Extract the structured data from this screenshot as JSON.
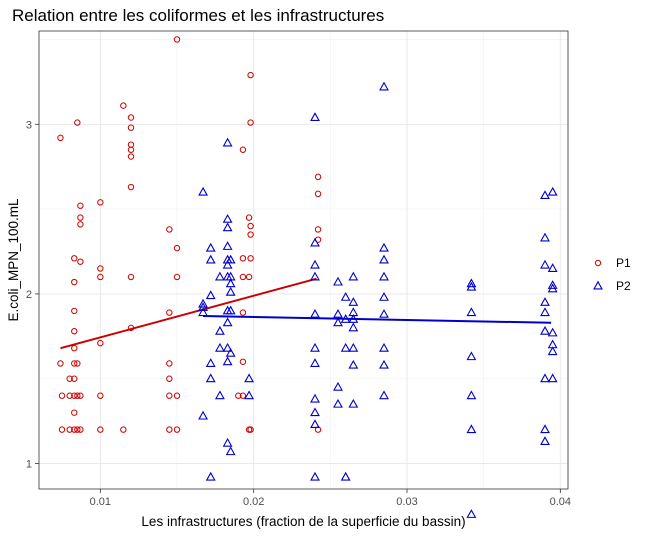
{
  "chart_data": {
    "type": "scatter",
    "title": "Relation entre les coliformes et les infrastructures",
    "xlabel": "Les infrastructures (fraction de la superficie du bassin)",
    "ylabel": "E.coli_MPN_100.mL",
    "xlim": [
      0.006,
      0.0405
    ],
    "ylim": [
      0.85,
      3.55
    ],
    "x_ticks": [
      0.01,
      0.02,
      0.03,
      0.04
    ],
    "x_tick_labels": [
      "0.01",
      "0.02",
      "0.03",
      "0.04"
    ],
    "y_ticks": [
      1.0,
      2.0,
      3.0
    ],
    "y_tick_labels": [
      "1",
      "2",
      "3"
    ],
    "grid": true,
    "legend_position": "right",
    "colors": {
      "P1": "#cc0000",
      "P2": "#0000cc"
    },
    "series": [
      {
        "name": "P1",
        "marker": "circle",
        "color": "#cc0000",
        "points": [
          [
            0.0074,
            2.92
          ],
          [
            0.0074,
            1.59
          ],
          [
            0.0075,
            1.4
          ],
          [
            0.0075,
            1.2
          ],
          [
            0.008,
            1.5
          ],
          [
            0.008,
            1.4
          ],
          [
            0.008,
            1.2
          ],
          [
            0.0083,
            2.21
          ],
          [
            0.0083,
            2.07
          ],
          [
            0.0083,
            1.9
          ],
          [
            0.0083,
            1.78
          ],
          [
            0.0083,
            1.68
          ],
          [
            0.0083,
            1.59
          ],
          [
            0.0083,
            1.5
          ],
          [
            0.0083,
            1.4
          ],
          [
            0.0083,
            1.3
          ],
          [
            0.0083,
            1.2
          ],
          [
            0.0085,
            3.01
          ],
          [
            0.0085,
            1.59
          ],
          [
            0.0085,
            1.4
          ],
          [
            0.0085,
            1.2
          ],
          [
            0.0087,
            2.52
          ],
          [
            0.0087,
            2.45
          ],
          [
            0.0087,
            2.41
          ],
          [
            0.0087,
            2.19
          ],
          [
            0.0087,
            1.4
          ],
          [
            0.0087,
            1.2
          ],
          [
            0.01,
            2.54
          ],
          [
            0.01,
            2.15
          ],
          [
            0.01,
            2.1
          ],
          [
            0.01,
            1.71
          ],
          [
            0.01,
            1.4
          ],
          [
            0.01,
            1.2
          ],
          [
            0.0115,
            3.11
          ],
          [
            0.0115,
            1.2
          ],
          [
            0.012,
            3.04
          ],
          [
            0.012,
            2.98
          ],
          [
            0.012,
            2.88
          ],
          [
            0.012,
            2.85
          ],
          [
            0.012,
            2.81
          ],
          [
            0.012,
            2.63
          ],
          [
            0.012,
            2.1
          ],
          [
            0.012,
            1.8
          ],
          [
            0.0145,
            2.38
          ],
          [
            0.0145,
            1.89
          ],
          [
            0.0145,
            1.59
          ],
          [
            0.0145,
            1.5
          ],
          [
            0.0145,
            1.4
          ],
          [
            0.0145,
            1.2
          ],
          [
            0.015,
            3.5
          ],
          [
            0.015,
            2.27
          ],
          [
            0.015,
            2.1
          ],
          [
            0.015,
            1.4
          ],
          [
            0.015,
            1.2
          ],
          [
            0.019,
            1.4
          ],
          [
            0.0193,
            2.85
          ],
          [
            0.0193,
            2.21
          ],
          [
            0.0193,
            2.1
          ],
          [
            0.0193,
            1.89
          ],
          [
            0.0193,
            1.6
          ],
          [
            0.0193,
            1.4
          ],
          [
            0.0197,
            2.45
          ],
          [
            0.0197,
            2.1
          ],
          [
            0.0197,
            1.2
          ],
          [
            0.0198,
            3.29
          ],
          [
            0.0198,
            3.01
          ],
          [
            0.0198,
            2.4
          ],
          [
            0.0198,
            2.35
          ],
          [
            0.0198,
            2.21
          ],
          [
            0.0198,
            1.2
          ],
          [
            0.0242,
            2.69
          ],
          [
            0.0242,
            2.59
          ],
          [
            0.0242,
            2.38
          ],
          [
            0.0242,
            2.32
          ],
          [
            0.0242,
            1.2
          ]
        ],
        "trend": {
          "x": [
            0.0074,
            0.0241
          ],
          "y": [
            1.68,
            2.09
          ]
        }
      },
      {
        "name": "P2",
        "marker": "triangle",
        "color": "#0000cc",
        "points": [
          [
            0.0167,
            2.6
          ],
          [
            0.0167,
            1.94
          ],
          [
            0.0167,
            1.92
          ],
          [
            0.0167,
            1.89
          ],
          [
            0.0167,
            1.28
          ],
          [
            0.0172,
            2.27
          ],
          [
            0.0172,
            2.2
          ],
          [
            0.0172,
            1.99
          ],
          [
            0.0172,
            1.59
          ],
          [
            0.0172,
            1.5
          ],
          [
            0.0172,
            0.92
          ],
          [
            0.0178,
            2.1
          ],
          [
            0.0178,
            1.78
          ],
          [
            0.0178,
            1.68
          ],
          [
            0.0178,
            1.4
          ],
          [
            0.0183,
            2.89
          ],
          [
            0.0183,
            2.44
          ],
          [
            0.0183,
            2.39
          ],
          [
            0.0183,
            2.28
          ],
          [
            0.0183,
            2.2
          ],
          [
            0.0183,
            2.17
          ],
          [
            0.0183,
            2.1
          ],
          [
            0.0183,
            1.9
          ],
          [
            0.0183,
            1.83
          ],
          [
            0.0183,
            1.68
          ],
          [
            0.0183,
            1.6
          ],
          [
            0.0183,
            1.12
          ],
          [
            0.0185,
            2.2
          ],
          [
            0.0185,
            2.1
          ],
          [
            0.0185,
            2.06
          ],
          [
            0.0185,
            2.01
          ],
          [
            0.0185,
            1.9
          ],
          [
            0.0185,
            1.65
          ],
          [
            0.0185,
            1.07
          ],
          [
            0.0197,
            1.5
          ],
          [
            0.0197,
            1.4
          ],
          [
            0.024,
            3.04
          ],
          [
            0.024,
            2.3
          ],
          [
            0.024,
            2.17
          ],
          [
            0.024,
            2.1
          ],
          [
            0.024,
            1.88
          ],
          [
            0.024,
            1.68
          ],
          [
            0.024,
            1.59
          ],
          [
            0.024,
            1.38
          ],
          [
            0.024,
            1.3
          ],
          [
            0.024,
            1.23
          ],
          [
            0.024,
            0.92
          ],
          [
            0.0255,
            2.07
          ],
          [
            0.0255,
            1.88
          ],
          [
            0.0255,
            1.83
          ],
          [
            0.0255,
            1.45
          ],
          [
            0.0255,
            1.35
          ],
          [
            0.026,
            1.98
          ],
          [
            0.026,
            1.85
          ],
          [
            0.026,
            1.68
          ],
          [
            0.026,
            0.92
          ],
          [
            0.0265,
            2.1
          ],
          [
            0.0265,
            1.95
          ],
          [
            0.0265,
            1.89
          ],
          [
            0.0265,
            1.85
          ],
          [
            0.0265,
            1.8
          ],
          [
            0.0265,
            1.68
          ],
          [
            0.0265,
            1.58
          ],
          [
            0.0265,
            1.35
          ],
          [
            0.0285,
            3.22
          ],
          [
            0.0285,
            2.27
          ],
          [
            0.0285,
            2.2
          ],
          [
            0.0285,
            2.1
          ],
          [
            0.0285,
            1.98
          ],
          [
            0.0285,
            1.88
          ],
          [
            0.0285,
            1.68
          ],
          [
            0.0285,
            1.58
          ],
          [
            0.0285,
            1.4
          ],
          [
            0.0342,
            2.06
          ],
          [
            0.0342,
            2.04
          ],
          [
            0.0342,
            1.89
          ],
          [
            0.0342,
            1.63
          ],
          [
            0.0342,
            1.4
          ],
          [
            0.0342,
            1.2
          ],
          [
            0.0342,
            0.7
          ],
          [
            0.039,
            2.58
          ],
          [
            0.039,
            2.33
          ],
          [
            0.039,
            2.17
          ],
          [
            0.039,
            1.95
          ],
          [
            0.039,
            1.89
          ],
          [
            0.039,
            1.78
          ],
          [
            0.039,
            1.5
          ],
          [
            0.039,
            1.2
          ],
          [
            0.039,
            1.13
          ],
          [
            0.0395,
            2.6
          ],
          [
            0.0395,
            2.15
          ],
          [
            0.0395,
            2.05
          ],
          [
            0.0395,
            2.03
          ],
          [
            0.0395,
            1.77
          ],
          [
            0.0395,
            1.7
          ],
          [
            0.0395,
            1.66
          ],
          [
            0.0395,
            1.5
          ]
        ],
        "trend": {
          "x": [
            0.0167,
            0.0394
          ],
          "y": [
            1.87,
            1.83
          ]
        }
      }
    ]
  }
}
